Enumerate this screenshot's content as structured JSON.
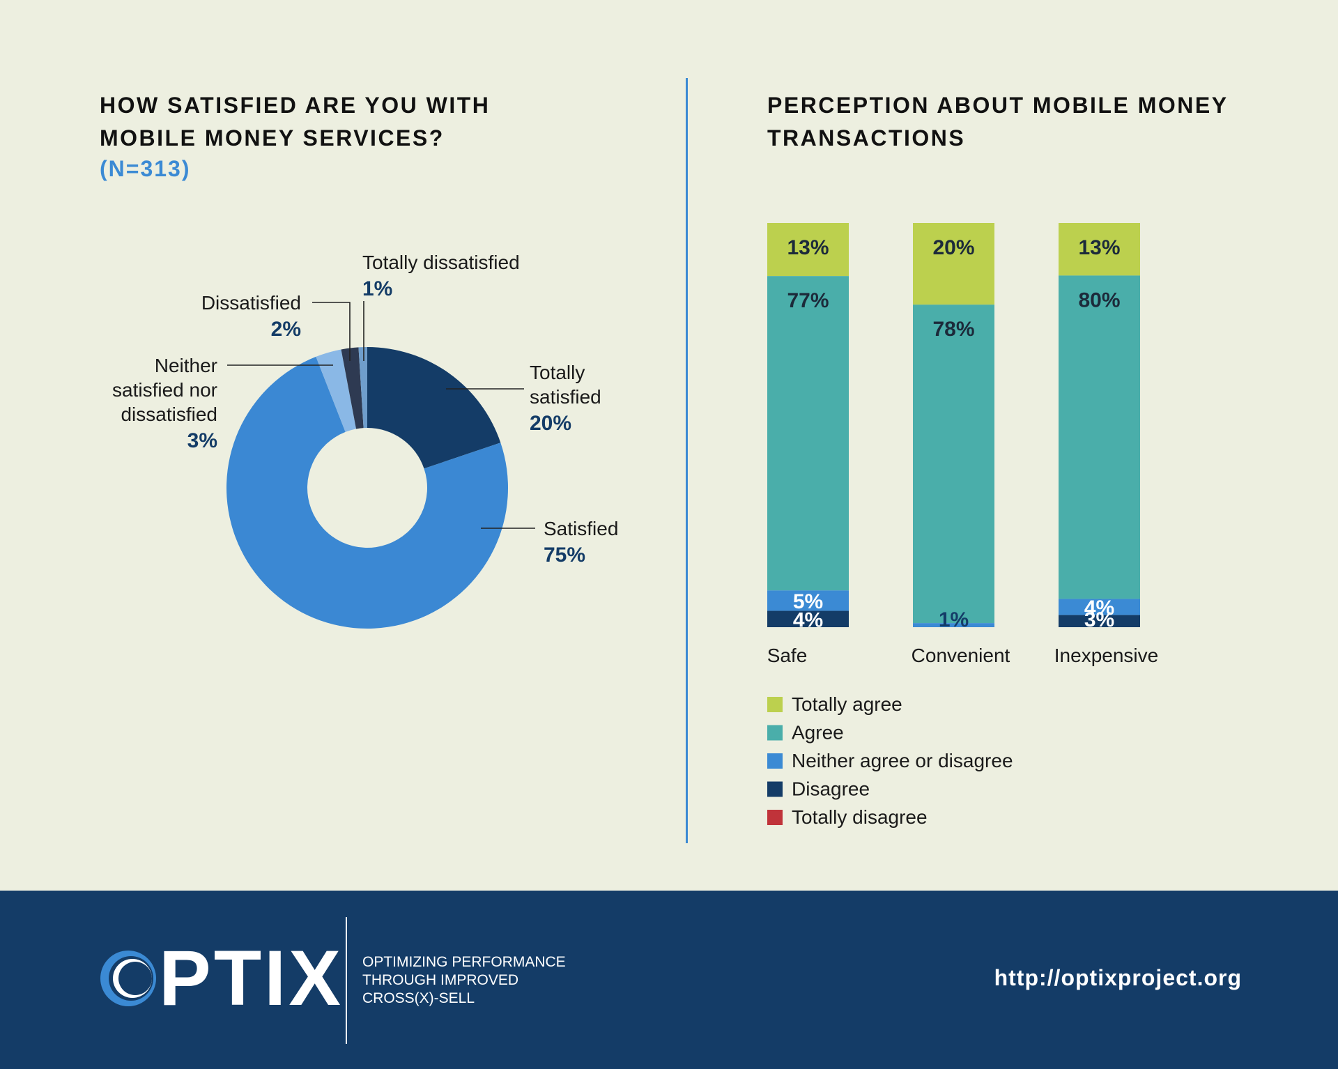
{
  "left_panel": {
    "title_line1": "HOW SATISFIED ARE YOU WITH",
    "title_line2": "MOBILE MONEY SERVICES?",
    "subtitle": "(N=313)"
  },
  "right_panel": {
    "title_line1": "PERCEPTION ABOUT MOBILE MONEY",
    "title_line2": "TRANSACTIONS"
  },
  "colors": {
    "totally_agree": "#bcd04e",
    "agree": "#4aaeaa",
    "neither": "#3b8ad4",
    "disagree": "#143c67",
    "totally_disagree": "#c0333a",
    "totally_satisfied": "#143c67",
    "satisfied": "#3b88d3",
    "neither_satisfied": "#8ab8e6",
    "dissatisfied": "#2e3a52",
    "totally_dissatisfied": "#6f9ecc"
  },
  "chart_data": [
    {
      "type": "pie",
      "donut": true,
      "title": "HOW SATISFIED ARE YOU WITH MOBILE MONEY SERVICES?",
      "subtitle": "(N=313)",
      "slices": [
        {
          "label": "Totally satisfied",
          "value": 20,
          "display": "20%",
          "color": "#143c67"
        },
        {
          "label": "Satisfied",
          "value": 75,
          "display": "75%",
          "color": "#3b88d3"
        },
        {
          "label": "Neither satisfied nor dissatisfied",
          "value": 3,
          "display": "3%",
          "color": "#8ab8e6"
        },
        {
          "label": "Dissatisfied",
          "value": 2,
          "display": "2%",
          "color": "#2e3a52"
        },
        {
          "label": "Totally dissatisfied",
          "value": 1,
          "display": "1%",
          "color": "#6f9ecc"
        }
      ],
      "label_lines": {
        "Totally satisfied": [
          "Totally",
          "satisfied"
        ],
        "Satisfied": [
          "Satisfied"
        ],
        "Neither satisfied nor dissatisfied": [
          "Neither",
          "satisfied nor",
          "dissatisfied"
        ],
        "Dissatisfied": [
          "Dissatisfied"
        ],
        "Totally dissatisfied": [
          "Totally dissatisfied"
        ]
      }
    },
    {
      "type": "bar",
      "stacked": true,
      "title": "PERCEPTION ABOUT MOBILE MONEY TRANSACTIONS",
      "categories": [
        "Safe",
        "Convenient",
        "Inexpensive"
      ],
      "series": [
        {
          "name": "Totally agree",
          "values": [
            13,
            20,
            13
          ],
          "color": "#bcd04e"
        },
        {
          "name": "Agree",
          "values": [
            77,
            78,
            80
          ],
          "color": "#4aaeaa"
        },
        {
          "name": "Neither agree or disagree",
          "values": [
            5,
            1,
            4
          ],
          "color": "#3b8ad4"
        },
        {
          "name": "Disagree",
          "values": [
            4,
            0,
            3
          ],
          "color": "#143c67"
        },
        {
          "name": "Totally disagree",
          "values": [
            0,
            0,
            0
          ],
          "color": "#c0333a"
        }
      ],
      "legend": [
        "Totally agree",
        "Agree",
        "Neither agree or disagree",
        "Disagree",
        "Totally disagree"
      ],
      "legend_position": "bottom-left"
    }
  ],
  "footer": {
    "logo_text": "PTIX",
    "tagline_line1": "OPTIMIZING PERFORMANCE",
    "tagline_line2": "THROUGH IMPROVED",
    "tagline_line3": "CROSS(X)-SELL",
    "url": "http://optixproject.org"
  }
}
